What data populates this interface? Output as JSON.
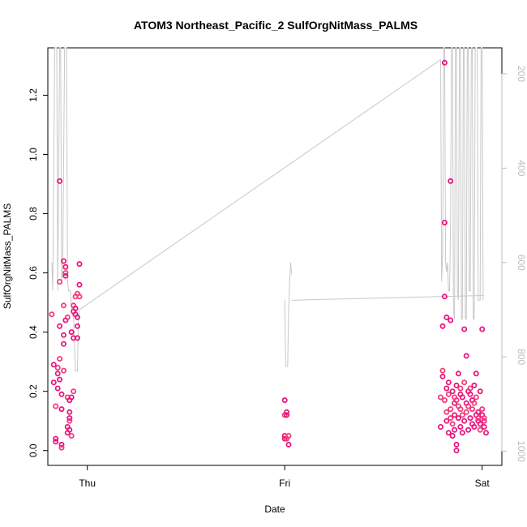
{
  "chart_data": {
    "type": "scatter",
    "title": "ATOM3 Northeast_Pacific_2 SulfOrgNitMass_PALMS",
    "xlabel": "Date",
    "ylabel": "SulfOrgNitMass_PALMS",
    "x_ticks": [
      "Thu",
      "Fri",
      "Sat"
    ],
    "y_ticks": [
      "0.0",
      "0.2",
      "0.4",
      "0.6",
      "0.8",
      "1.0",
      "1.2"
    ],
    "y2_ticks": [
      "200",
      "400",
      "600",
      "800",
      "1000"
    ],
    "ylim": [
      -0.05,
      1.36
    ],
    "y2lim": [
      1030,
      145
    ],
    "xlim": [
      -0.2,
      2.1
    ],
    "grid": false,
    "legend": "none",
    "colors": {
      "points": "#e8177f",
      "points_light": "#f03c7a",
      "line": "#c8c8c8",
      "right_axis": "#bdbdbd"
    },
    "series": [
      {
        "values": [
          [
            -0.18,
            0.46
          ],
          [
            -0.17,
            0.29
          ],
          [
            -0.17,
            0.23
          ],
          [
            -0.16,
            0.15
          ],
          [
            -0.16,
            0.04
          ],
          [
            -0.16,
            0.03
          ],
          [
            -0.15,
            0.28
          ],
          [
            -0.15,
            0.21
          ],
          [
            -0.15,
            0.26
          ],
          [
            -0.14,
            0.31
          ],
          [
            -0.14,
            0.24
          ],
          [
            -0.14,
            0.42
          ],
          [
            -0.14,
            0.57
          ],
          [
            -0.14,
            0.91
          ],
          [
            -0.13,
            0.02
          ],
          [
            -0.13,
            0.01
          ],
          [
            -0.13,
            0.14
          ],
          [
            -0.13,
            0.19
          ],
          [
            -0.12,
            0.27
          ],
          [
            -0.12,
            0.36
          ],
          [
            -0.12,
            0.39
          ],
          [
            -0.12,
            0.49
          ],
          [
            -0.12,
            0.64
          ],
          [
            -0.11,
            0.62
          ],
          [
            -0.11,
            0.6
          ],
          [
            -0.11,
            0.59
          ],
          [
            -0.11,
            0.44
          ],
          [
            -0.1,
            0.18
          ],
          [
            -0.1,
            0.08
          ],
          [
            -0.1,
            0.06
          ],
          [
            -0.1,
            0.45
          ],
          [
            -0.09,
            0.11
          ],
          [
            -0.09,
            0.13
          ],
          [
            -0.09,
            0.1
          ],
          [
            -0.09,
            0.17
          ],
          [
            -0.09,
            0.07
          ],
          [
            -0.08,
            0.05
          ],
          [
            -0.08,
            0.18
          ],
          [
            -0.08,
            0.4
          ],
          [
            -0.07,
            0.2
          ],
          [
            -0.07,
            0.47
          ],
          [
            -0.07,
            0.38
          ],
          [
            -0.07,
            0.49
          ],
          [
            -0.06,
            0.46
          ],
          [
            -0.06,
            0.48
          ],
          [
            -0.06,
            0.52
          ],
          [
            -0.05,
            0.45
          ],
          [
            -0.05,
            0.42
          ],
          [
            -0.05,
            0.53
          ],
          [
            -0.05,
            0.38
          ],
          [
            -0.04,
            0.56
          ],
          [
            -0.04,
            0.52
          ],
          [
            -0.04,
            0.63
          ],
          [
            1.0,
            0.17
          ],
          [
            1.0,
            0.12
          ],
          [
            1.0,
            0.05
          ],
          [
            1.0,
            0.04
          ],
          [
            1.01,
            0.04
          ],
          [
            1.01,
            0.13
          ],
          [
            1.01,
            0.12
          ],
          [
            1.02,
            0.05
          ],
          [
            1.02,
            0.02
          ],
          [
            1.79,
            0.08
          ],
          [
            1.79,
            0.18
          ],
          [
            1.8,
            0.42
          ],
          [
            1.8,
            0.25
          ],
          [
            1.8,
            0.27
          ],
          [
            1.81,
            0.52
          ],
          [
            1.81,
            0.77
          ],
          [
            1.81,
            0.17
          ],
          [
            1.81,
            1.31
          ],
          [
            1.82,
            0.45
          ],
          [
            1.82,
            0.13
          ],
          [
            1.82,
            0.1
          ],
          [
            1.82,
            0.21
          ],
          [
            1.83,
            0.19
          ],
          [
            1.83,
            0.23
          ],
          [
            1.83,
            0.06
          ],
          [
            1.84,
            0.14
          ],
          [
            1.84,
            0.91
          ],
          [
            1.84,
            0.44
          ],
          [
            1.84,
            0.11
          ],
          [
            1.85,
            0.05
          ],
          [
            1.85,
            0.2
          ],
          [
            1.85,
            0.09
          ],
          [
            1.86,
            0.16
          ],
          [
            1.86,
            0.12
          ],
          [
            1.86,
            0.18
          ],
          [
            1.86,
            0.07
          ],
          [
            1.87,
            0.22
          ],
          [
            1.87,
            0.17
          ],
          [
            1.87,
            0.02
          ],
          [
            1.87,
            0.0
          ],
          [
            1.88,
            0.15
          ],
          [
            1.88,
            0.26
          ],
          [
            1.88,
            0.11
          ],
          [
            1.89,
            0.21
          ],
          [
            1.89,
            0.08
          ],
          [
            1.89,
            0.19
          ],
          [
            1.89,
            0.14
          ],
          [
            1.9,
            0.06
          ],
          [
            1.9,
            0.18
          ],
          [
            1.9,
            0.12
          ],
          [
            1.91,
            0.1
          ],
          [
            1.91,
            0.41
          ],
          [
            1.91,
            0.23
          ],
          [
            1.92,
            0.32
          ],
          [
            1.92,
            0.16
          ],
          [
            1.92,
            0.13
          ],
          [
            1.93,
            0.2
          ],
          [
            1.93,
            0.07
          ],
          [
            1.93,
            0.15
          ],
          [
            1.94,
            0.19
          ],
          [
            1.94,
            0.11
          ],
          [
            1.94,
            0.21
          ],
          [
            1.95,
            0.09
          ],
          [
            1.95,
            0.17
          ],
          [
            1.95,
            0.14
          ],
          [
            1.96,
            0.22
          ],
          [
            1.96,
            0.08
          ],
          [
            1.96,
            0.16
          ],
          [
            1.97,
            0.26
          ],
          [
            1.97,
            0.12
          ],
          [
            1.97,
            0.18
          ],
          [
            1.98,
            0.1
          ],
          [
            1.98,
            0.13
          ],
          [
            1.98,
            0.11
          ],
          [
            1.99,
            0.09
          ],
          [
            1.99,
            0.2
          ],
          [
            1.99,
            0.07
          ],
          [
            2.0,
            0.12
          ],
          [
            2.0,
            0.41
          ],
          [
            2.0,
            0.14
          ],
          [
            2.01,
            0.1
          ],
          [
            2.01,
            0.08
          ],
          [
            2.01,
            0.11
          ],
          [
            2.02,
            0.06
          ]
        ]
      }
    ],
    "line_series": {
      "axis": "right",
      "values": [
        [
          -0.18,
          600
        ],
        [
          -0.175,
          660
        ],
        [
          -0.165,
          140
        ],
        [
          -0.155,
          140
        ],
        [
          -0.15,
          660
        ],
        [
          -0.14,
          140
        ],
        [
          -0.135,
          140
        ],
        [
          -0.13,
          640
        ],
        [
          -0.125,
          620
        ],
        [
          -0.115,
          140
        ],
        [
          -0.105,
          140
        ],
        [
          -0.1,
          640
        ],
        [
          -0.095,
          660
        ],
        [
          -0.085,
          660
        ],
        [
          -0.08,
          700
        ],
        [
          -0.07,
          720
        ],
        [
          -0.06,
          830
        ],
        [
          -0.05,
          830
        ],
        [
          -0.045,
          720
        ],
        [
          -0.04,
          700
        ],
        [
          1.79,
          170
        ],
        [
          1.795,
          640
        ],
        [
          1.8,
          580
        ],
        [
          1.805,
          140
        ],
        [
          1.81,
          140
        ],
        [
          1.815,
          600
        ],
        [
          1.82,
          620
        ],
        [
          1.825,
          600
        ],
        [
          1.83,
          660
        ],
        [
          1.835,
          660
        ],
        [
          1.84,
          520
        ],
        [
          1.845,
          140
        ],
        [
          1.85,
          140
        ],
        [
          1.855,
          700
        ],
        [
          1.86,
          720
        ],
        [
          1.865,
          140
        ],
        [
          1.87,
          140
        ],
        [
          1.875,
          660
        ],
        [
          1.88,
          680
        ],
        [
          1.885,
          140
        ],
        [
          1.89,
          140
        ],
        [
          1.895,
          720
        ],
        [
          1.9,
          720
        ],
        [
          1.905,
          140
        ],
        [
          1.91,
          140
        ],
        [
          1.915,
          720
        ],
        [
          1.92,
          720
        ],
        [
          1.925,
          140
        ],
        [
          1.93,
          140
        ],
        [
          1.935,
          660
        ],
        [
          1.94,
          660
        ],
        [
          1.945,
          140
        ],
        [
          1.95,
          140
        ],
        [
          1.955,
          720
        ],
        [
          1.96,
          720
        ],
        [
          1.965,
          140
        ],
        [
          1.975,
          140
        ],
        [
          1.98,
          680
        ],
        [
          1.99,
          680
        ],
        [
          1.995,
          140
        ],
        [
          2.0,
          140
        ],
        [
          2.005,
          680
        ],
        [
          1.0,
          680
        ],
        [
          1.005,
          820
        ],
        [
          1.015,
          820
        ],
        [
          1.02,
          700
        ],
        [
          1.025,
          640
        ],
        [
          1.03,
          600
        ],
        [
          1.035,
          625
        ]
      ]
    }
  }
}
